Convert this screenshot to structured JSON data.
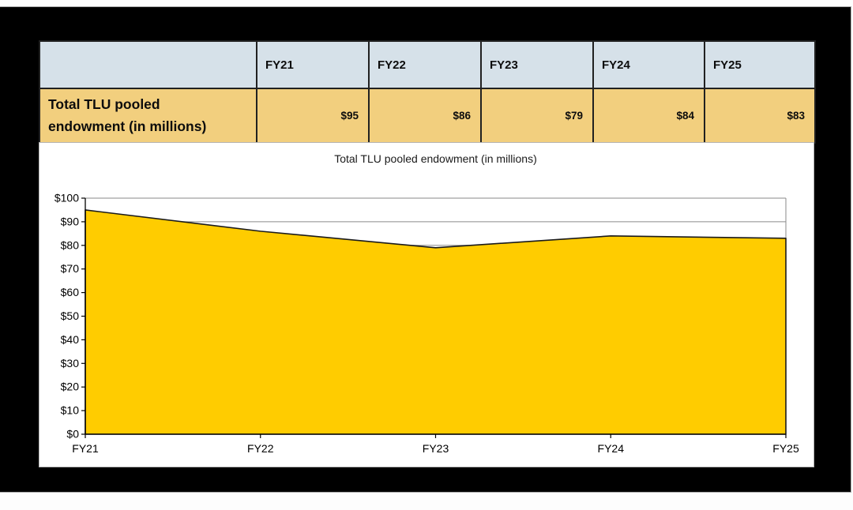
{
  "table": {
    "row_label": "Total TLU pooled endowment (in millions)",
    "columns": [
      "FY21",
      "FY22",
      "FY23",
      "FY24",
      "FY25"
    ],
    "values": [
      "$95",
      "$86",
      "$79",
      "$84",
      "$83"
    ]
  },
  "chart_data": {
    "type": "area",
    "title": "Total TLU pooled endowment (in millions)",
    "categories": [
      "FY21",
      "FY22",
      "FY23",
      "FY24",
      "FY25"
    ],
    "values": [
      95,
      86,
      79,
      84,
      83
    ],
    "xlabel": "",
    "ylabel": "",
    "ylim": [
      0,
      100
    ],
    "ytick_interval": 10,
    "ytick_labels": [
      "$0",
      "$10",
      "$20",
      "$30",
      "$40",
      "$50",
      "$60",
      "$70",
      "$80",
      "$90",
      "$100"
    ],
    "grid": true,
    "legend": "none",
    "colors": {
      "fill": "#ffcc00",
      "line": "#1a1a1a",
      "gridline": "#8a8a8a",
      "axis": "#000000"
    }
  },
  "colors": {
    "frame": "#000000",
    "table_header_bg": "#d6e1e9",
    "table_row_bg": "#f2cf7e",
    "table_border": "#212121",
    "panel_border": "#b5b5b5"
  }
}
